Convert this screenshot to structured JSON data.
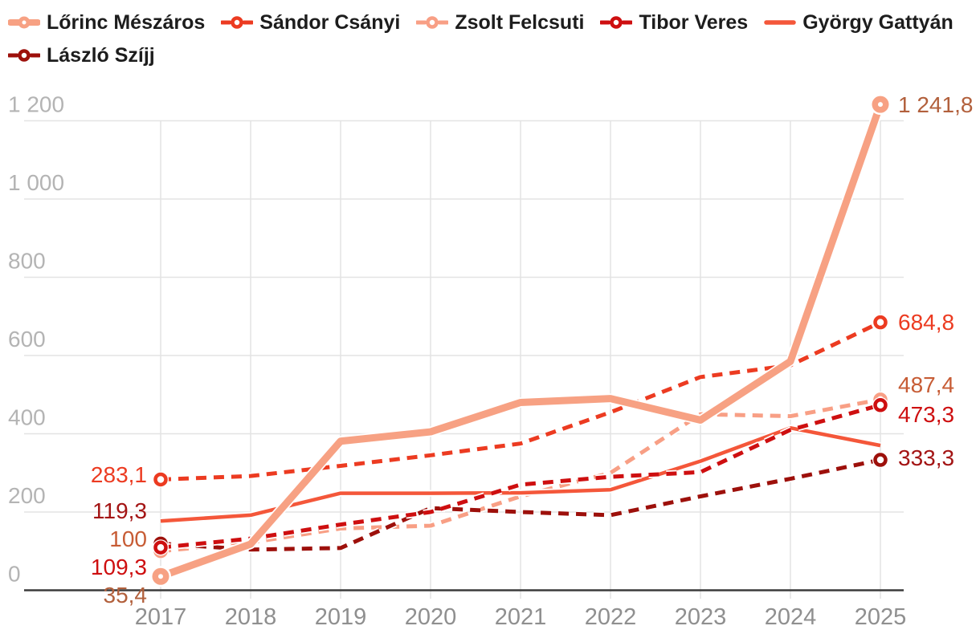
{
  "chart_data": {
    "type": "line",
    "title": "",
    "x_categories": [
      "2017",
      "2018",
      "2019",
      "2020",
      "2021",
      "2022",
      "2023",
      "2024",
      "2025"
    ],
    "yticks": [
      0,
      200,
      400,
      600,
      800,
      1000,
      1200
    ],
    "ytick_labels": [
      "0",
      "200",
      "400",
      "600",
      "800",
      "1 000",
      "1 200"
    ],
    "ylim": [
      0,
      1260
    ],
    "grid": true,
    "legend_position": "top-left",
    "series": [
      {
        "name": "Lőrinc Mészáros",
        "slug": "meszaros",
        "color": "#f7a183",
        "label_color": "#b2603c",
        "line": "solid",
        "width": 9,
        "marker": "filled",
        "values": [
          35.4,
          118,
          381,
          405,
          480,
          490,
          435,
          585,
          1241.8
        ],
        "first_label": "35,4",
        "last_label": "1 241,8"
      },
      {
        "name": "Sándor Csányi",
        "slug": "csanyi",
        "color": "#ec3b21",
        "label_color": "#ec3b21",
        "line": "dashed",
        "width": 5,
        "marker": "open",
        "values": [
          283.1,
          292,
          318,
          345,
          375,
          455,
          545,
          575,
          684.8
        ],
        "first_label": "283,1",
        "last_label": "684,8"
      },
      {
        "name": "Zsolt Felcsuti",
        "slug": "felcsuti",
        "color": "#f89f85",
        "label_color": "#c75c35",
        "line": "dashed",
        "width": 5,
        "marker": "open",
        "values": [
          100,
          122,
          158,
          165,
          240,
          300,
          450,
          445,
          487.4
        ],
        "first_label": "100",
        "last_label": "487,4"
      },
      {
        "name": "Tibor Veres",
        "slug": "veres",
        "color": "#ce0f10",
        "label_color": "#ce0f10",
        "line": "dashed",
        "width": 5,
        "marker": "open",
        "values": [
          109.3,
          132,
          168,
          200,
          270,
          290,
          302,
          410,
          473.3
        ],
        "first_label": "109,3",
        "last_label": "473,3"
      },
      {
        "name": "György Gattyán",
        "slug": "gattyan",
        "color": "#f4573a",
        "label_color": "#f4573a",
        "line": "solid",
        "width": 4.5,
        "marker": "none",
        "values": [
          177,
          192,
          248,
          248,
          249,
          257,
          330,
          415,
          370
        ],
        "first_label": "",
        "last_label": ""
      },
      {
        "name": "László Szíjj",
        "slug": "szijj",
        "color": "#9d100b",
        "label_color": "#a31414",
        "line": "dashed",
        "width": 5,
        "marker": "open",
        "values": [
          119.3,
          104,
          108,
          210,
          200,
          192,
          240,
          285,
          333.3
        ],
        "first_label": "119,3",
        "last_label": "333,3"
      }
    ],
    "colors": {
      "gridline": "#e3e3e3",
      "axis": "#3c3c3c",
      "ytick_text": "#b4b4b4",
      "xtick_text": "#8f8f8f",
      "legend_text": "#1d1d1d",
      "background": "#ffffff"
    }
  }
}
